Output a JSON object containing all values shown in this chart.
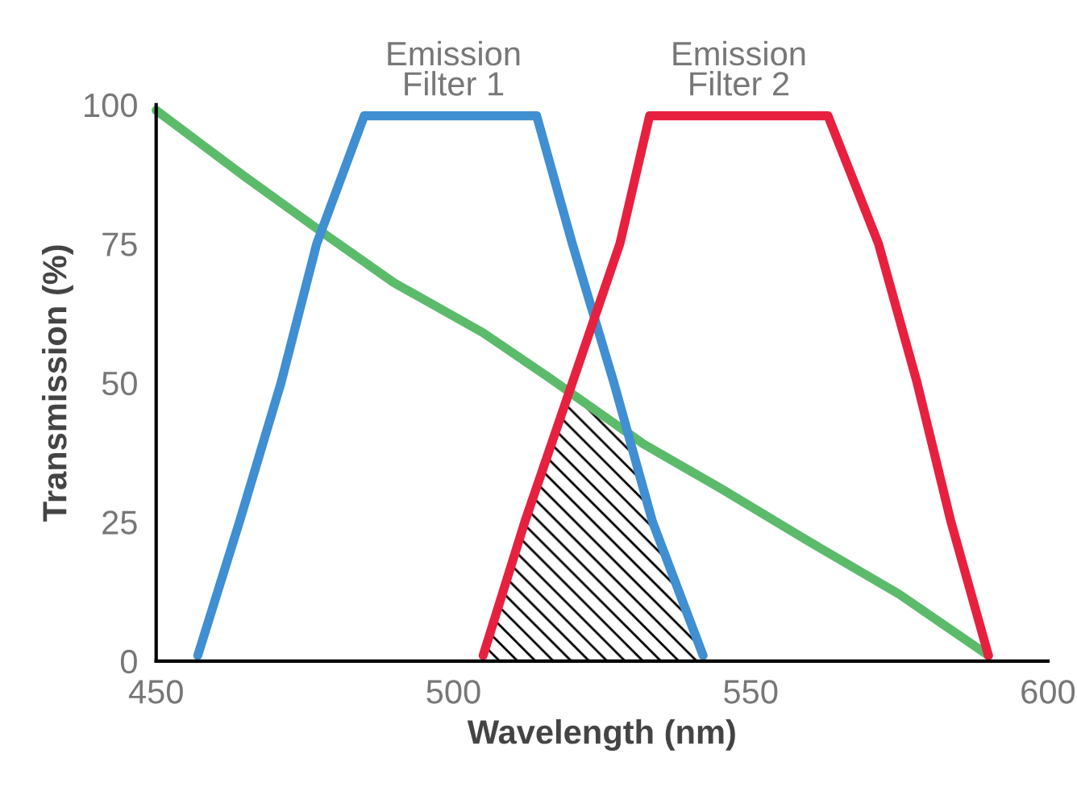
{
  "chart_data": {
    "type": "line",
    "xlabel": "Wavelength (nm)",
    "ylabel": "Transmission (%)",
    "xlim": [
      450,
      600
    ],
    "xticks": [
      450,
      500,
      550,
      600
    ],
    "ylim": [
      0,
      100
    ],
    "yticks": [
      0,
      25,
      50,
      75,
      100
    ],
    "grid": false,
    "legend": false,
    "series": [
      {
        "color": "#5cbb6b",
        "x": [
          450,
          465,
          478,
          490,
          505,
          516,
          532,
          545,
          559,
          575,
          590
        ],
        "values": [
          99,
          87,
          77,
          68,
          59,
          51,
          39,
          31,
          22,
          12,
          1
        ]
      },
      {
        "color": "#3f8fd2",
        "x": [
          457,
          464,
          471,
          477,
          485,
          514,
          520,
          527,
          533.5,
          542
        ],
        "values": [
          1,
          25,
          50,
          75,
          98,
          98,
          75,
          50,
          25,
          1
        ]
      },
      {
        "color": "#e8203f",
        "x": [
          505,
          512,
          520,
          528,
          533,
          563,
          571.5,
          578,
          583.7,
          590
        ],
        "values": [
          1,
          25,
          50,
          75,
          98,
          98,
          75,
          50,
          25,
          1
        ]
      }
    ],
    "annotations": [
      {
        "text": "Emission\nFilter 1",
        "x": 500,
        "y": 98
      },
      {
        "text": "Emission\nFilter 2",
        "x": 548,
        "y": 98
      }
    ]
  }
}
